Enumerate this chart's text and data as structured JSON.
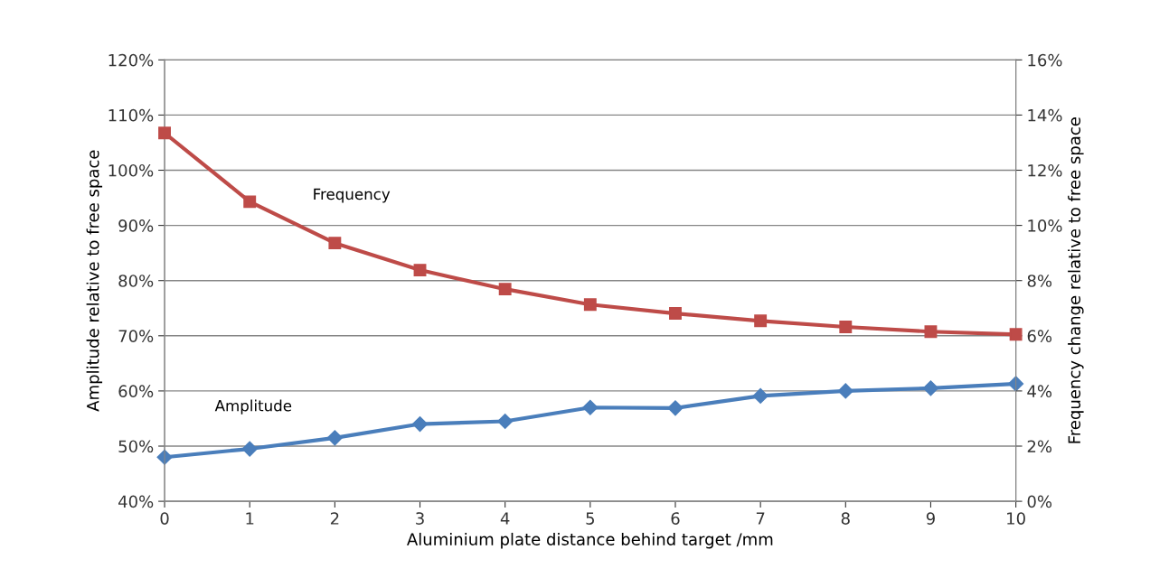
{
  "chart_data": {
    "type": "line",
    "xlabel": "Aluminium plate distance behind target /mm",
    "ylabel": "Amplitude relative to free space",
    "y2label": "Frequency change relative to free space",
    "x": [
      0,
      1,
      2,
      3,
      4,
      5,
      6,
      7,
      8,
      9,
      10
    ],
    "xlim": [
      0,
      10
    ],
    "xticks": [
      0,
      1,
      2,
      3,
      4,
      5,
      6,
      7,
      8,
      9,
      10
    ],
    "ylim": [
      40,
      120
    ],
    "yticks": [
      {
        "value": 40,
        "label": "40%"
      },
      {
        "value": 50,
        "label": "50%"
      },
      {
        "value": 60,
        "label": "60%"
      },
      {
        "value": 70,
        "label": "70%"
      },
      {
        "value": 80,
        "label": "80%"
      },
      {
        "value": 90,
        "label": "90%"
      },
      {
        "value": 100,
        "label": "100%"
      },
      {
        "value": 110,
        "label": "110%"
      },
      {
        "value": 120,
        "label": "120%"
      }
    ],
    "y2lim": [
      0,
      16
    ],
    "y2ticks": [
      {
        "value": 0,
        "label": "0%"
      },
      {
        "value": 2,
        "label": "2%"
      },
      {
        "value": 4,
        "label": "4%"
      },
      {
        "value": 6,
        "label": "6%"
      },
      {
        "value": 8,
        "label": "8%"
      },
      {
        "value": 10,
        "label": "10%"
      },
      {
        "value": 12,
        "label": "12%"
      },
      {
        "value": 14,
        "label": "14%"
      },
      {
        "value": 16,
        "label": "16%"
      }
    ],
    "grid": "y",
    "legend": false,
    "line_style": "solid",
    "series": [
      {
        "name": "Amplitude",
        "color": "#4a7ebb",
        "marker": "diamond",
        "values": [
          48,
          49.5,
          51.5,
          54,
          54.5,
          57,
          56.9,
          59.1,
          60,
          60.5,
          61.3
        ]
      },
      {
        "name": "Frequency",
        "color": "#be4b48",
        "marker": "square",
        "axis": "y2",
        "values": [
          13.35,
          10.86,
          9.36,
          8.38,
          7.69,
          7.13,
          6.81,
          6.54,
          6.32,
          6.15,
          6.05
        ]
      }
    ]
  }
}
